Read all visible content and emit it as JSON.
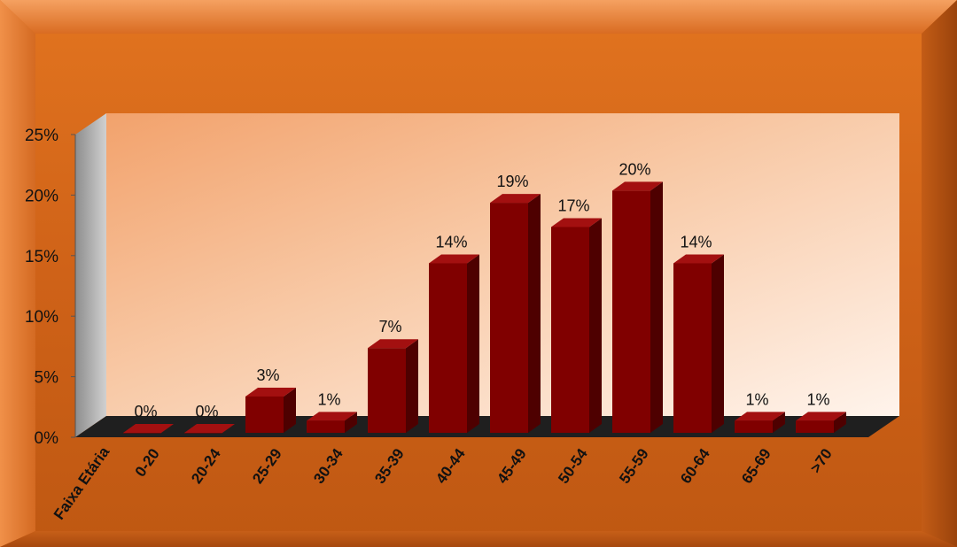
{
  "chart_data": {
    "type": "bar",
    "title": "",
    "xlabel": "Faixa Etária",
    "ylabel": "",
    "categories": [
      "0-20",
      "20-24",
      "25-29",
      "30-34",
      "35-39",
      "40-44",
      "45-49",
      "50-54",
      "55-59",
      "60-64",
      "65-69",
      ">70"
    ],
    "values": [
      0,
      0,
      3,
      1,
      7,
      14,
      19,
      17,
      20,
      14,
      1,
      1
    ],
    "data_labels": [
      "0%",
      "0%",
      "3%",
      "1%",
      "7%",
      "14%",
      "19%",
      "17%",
      "20%",
      "14%",
      "1%",
      "1%"
    ],
    "y_ticks": [
      0,
      5,
      10,
      15,
      20,
      25
    ],
    "y_tick_labels": [
      "0%",
      "5%",
      "10%",
      "15%",
      "20%",
      "25%"
    ],
    "ylim": [
      0,
      25
    ],
    "grid": false,
    "legend": "none",
    "style": "3d-column",
    "colors": {
      "bar_front": "#800000",
      "bar_side": "#4e0000",
      "bar_top": "#a31010",
      "frame_light": "#e67a2e",
      "frame_dark": "#b35210",
      "plot_bg_light": "#fff2ea",
      "plot_bg_dark": "#f2a06a",
      "floor": "#1f1f1f"
    }
  }
}
